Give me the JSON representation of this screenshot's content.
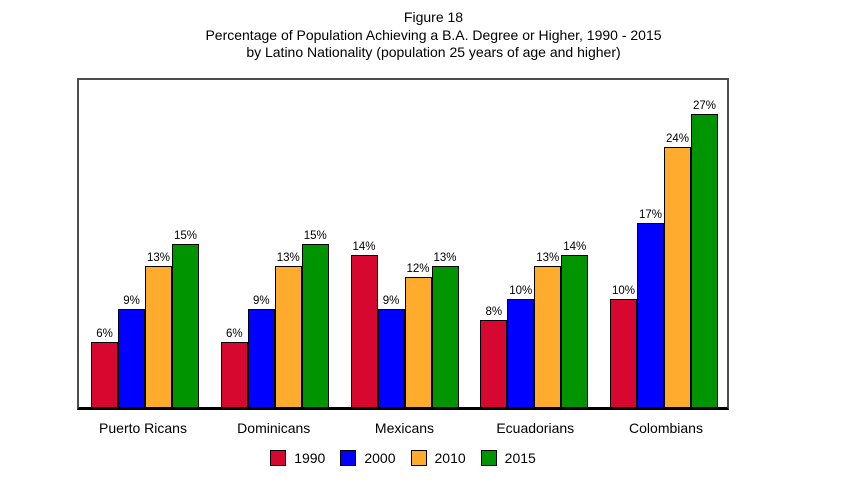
{
  "figure": {
    "title_line1": "Figure 18",
    "title_line2": "Percentage of Population Achieving a B.A. Degree or Higher, 1990 - 2015",
    "title_line3": "by Latino Nationality (population 25 years of age and higher)"
  },
  "chart_data": {
    "type": "bar",
    "title": "Figure 18",
    "subtitle": "Percentage of Population Achieving a B.A. Degree or Higher, 1990 - 2015 by Latino Nationality (population 25 years of age and higher)",
    "categories": [
      "Puerto Ricans",
      "Dominicans",
      "Mexicans",
      "Ecuadorians",
      "Colombians"
    ],
    "series": [
      {
        "name": "1990",
        "color": "#d6082f",
        "values": [
          6,
          6,
          14,
          8,
          10
        ]
      },
      {
        "name": "2000",
        "color": "#0000fe",
        "values": [
          9,
          9,
          9,
          10,
          17
        ]
      },
      {
        "name": "2010",
        "color": "#ffac2e",
        "values": [
          13,
          13,
          12,
          13,
          24
        ]
      },
      {
        "name": "2015",
        "color": "#009400",
        "values": [
          15,
          15,
          13,
          14,
          27
        ]
      }
    ],
    "value_suffix": "%",
    "xlabel": "",
    "ylabel": "",
    "ylim": [
      0,
      30
    ],
    "grid": false,
    "y_axis_visible": false,
    "data_labels": true,
    "legend_position": "bottom"
  }
}
